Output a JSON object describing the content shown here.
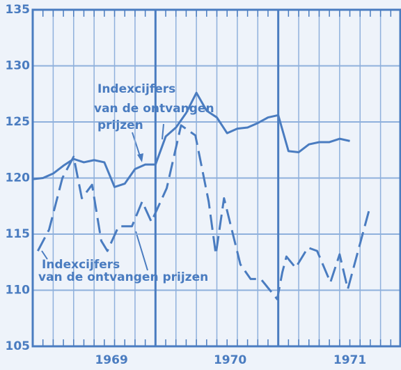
{
  "chart_data": {
    "type": "line",
    "annotations": [
      [
        "Indexcijfers",
        "van de ontvangen",
        "prijzen"
      ],
      [
        "Indexcijfers",
        "van de ontvangen prijzen"
      ]
    ],
    "series": [
      {
        "color": "#4a7cc0",
        "dash": false,
        "x": [
          0,
          1,
          2,
          3,
          4,
          5,
          6,
          7,
          8,
          9,
          10,
          11,
          12,
          13,
          14,
          15,
          16,
          17,
          18,
          19,
          20,
          21,
          22,
          23,
          24,
          25,
          26,
          27,
          28,
          29,
          30,
          31
        ],
        "values": [
          119.9,
          120.0,
          120.4,
          121.1,
          121.7,
          121.4,
          121.6,
          121.4,
          119.2,
          119.5,
          120.8,
          121.2,
          121.2,
          123.7,
          124.5,
          125.8,
          127.6,
          126.0,
          125.4,
          124.0,
          124.4,
          124.5,
          124.9,
          125.4,
          125.6,
          122.4,
          122.3,
          123.0,
          123.2,
          123.2,
          123.5,
          123.3
        ]
      },
      {
        "color": "#4a7cc0",
        "dash": true,
        "x": [
          0.5,
          1.6,
          2.9,
          4,
          4.8,
          5.8,
          6.7,
          7.3,
          8.4,
          9.7,
          10.7,
          11.6,
          13.1,
          14.5,
          15.9,
          17.2,
          17.9,
          18.7,
          20.3,
          21.3,
          22.3,
          23.9,
          24.4,
          24.8,
          25.7,
          26.9,
          27.8,
          29.1,
          30,
          30.8,
          32.9
        ],
        "values": [
          113.5,
          115.4,
          120.0,
          121.9,
          118.2,
          119.4,
          114.4,
          113.5,
          115.7,
          115.7,
          117.9,
          116.1,
          119.1,
          124.7,
          123.8,
          117.9,
          113.2,
          118.2,
          112.3,
          111.0,
          111.0,
          109.2,
          111.6,
          113.0,
          112.0,
          113.8,
          113.5,
          110.7,
          113.2,
          110.1,
          117.2
        ]
      }
    ],
    "xlim": [
      0,
      36
    ],
    "xticks": [
      {
        "value": 7.7,
        "label": "1969"
      },
      {
        "value": 19.3,
        "label": "1970"
      },
      {
        "value": 31,
        "label": "1971"
      }
    ],
    "xgrid": [
      2,
      4,
      6,
      8,
      10,
      14,
      16,
      18,
      20,
      22,
      26,
      28,
      30,
      32,
      34
    ],
    "xmajor": [
      12,
      24
    ],
    "ylim": [
      105,
      135
    ],
    "yticks": [
      105,
      110,
      115,
      120,
      125,
      130,
      135
    ],
    "grid": true
  }
}
